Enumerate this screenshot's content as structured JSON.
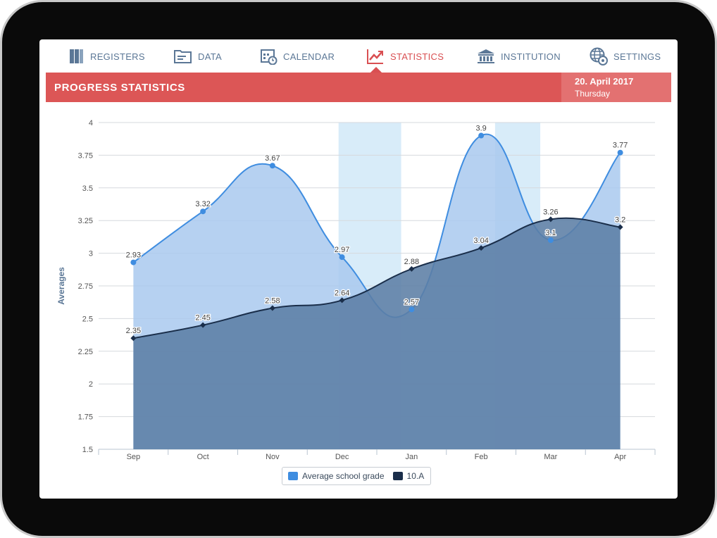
{
  "nav": {
    "items": [
      {
        "label": "REGISTERS",
        "icon": "books-icon",
        "active": false
      },
      {
        "label": "DATA",
        "icon": "folder-icon",
        "active": false
      },
      {
        "label": "CALENDAR",
        "icon": "calendar-icon",
        "active": false
      },
      {
        "label": "STATISTICS",
        "icon": "trend-chart-icon",
        "active": true
      },
      {
        "label": "INSTITUTION",
        "icon": "building-icon",
        "active": false
      },
      {
        "label": "SETTINGS",
        "icon": "globe-gear-icon",
        "active": false
      }
    ]
  },
  "header": {
    "title": "PROGRESS STATISTICS",
    "date": "20. April 2017",
    "weekday": "Thursday"
  },
  "colors": {
    "accent": "#dc5656",
    "accent_light": "#e37171",
    "nav_text": "#5b7796",
    "series1": "#4a90d9",
    "series1_fill": "#a9c9ef",
    "series2": "#1a2e4a",
    "series2_fill": "#5c7ea5",
    "highlight_band": "#d8ecf9"
  },
  "chart_data": {
    "type": "area",
    "title": "",
    "xlabel": "",
    "ylabel": "Averages",
    "categories": [
      "Sep",
      "Oct",
      "Nov",
      "Dec",
      "Jan",
      "Feb",
      "Mar",
      "Apr"
    ],
    "ylim": [
      1.5,
      4
    ],
    "yticks": [
      "1.5",
      "1.75",
      "2",
      "2.25",
      "2.5",
      "2.75",
      "3",
      "3.25",
      "3.5",
      "3.75",
      "4"
    ],
    "grid": true,
    "highlight_bands": [
      {
        "from": 3.45,
        "to": 4.35
      },
      {
        "from": 5.7,
        "to": 6.35
      }
    ],
    "series": [
      {
        "name": "Average school grade",
        "values": [
          2.93,
          3.32,
          3.67,
          2.97,
          2.57,
          3.9,
          3.1,
          3.77
        ],
        "labels": [
          "2.93",
          "3.32",
          "3.67",
          "2.97",
          "2.57",
          "3.9",
          "3.1",
          "3.77"
        ]
      },
      {
        "name": "10.A",
        "values": [
          2.35,
          2.45,
          2.58,
          2.64,
          2.88,
          3.04,
          3.26,
          3.2
        ],
        "labels": [
          "2.35",
          "2.45",
          "2.58",
          "2.64",
          "2.88",
          "3.04",
          "3.26",
          "3.2"
        ]
      }
    ],
    "legend": "bottom-center"
  }
}
